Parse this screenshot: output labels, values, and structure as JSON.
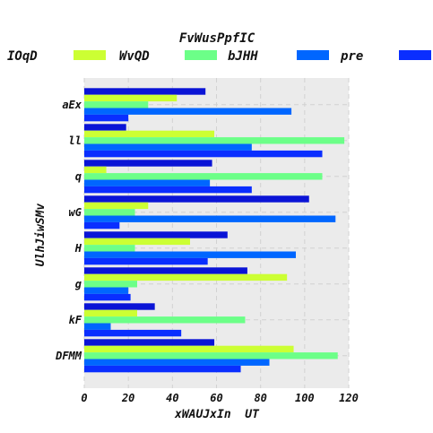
{
  "chart_data": {
    "type": "bar",
    "orientation": "horizontal",
    "title": "FvWusPpfIC",
    "xlabel": "xWAUJxIn  UT",
    "ylabel": "UlhJiwSMv",
    "xlim": [
      0,
      120
    ],
    "xticks": [
      0,
      20,
      40,
      60,
      80,
      100,
      120
    ],
    "grid": true,
    "legend_position": "top",
    "categories": [
      "aEx",
      "ll",
      "q",
      "wG",
      "H",
      "g",
      "kF",
      "DFMM"
    ],
    "series": [
      {
        "name": "IOqD",
        "color": "#0a14d6",
        "values": [
          55,
          19,
          58,
          102,
          65,
          74,
          32,
          59
        ]
      },
      {
        "name": "WvQD",
        "color": "#ccff33",
        "values": [
          42,
          59,
          10,
          29,
          48,
          92,
          24,
          95
        ]
      },
      {
        "name": "bJHH",
        "color": "#6cff88",
        "values": [
          29,
          118,
          108,
          23,
          23,
          24,
          73,
          115
        ]
      },
      {
        "name": "pre",
        "color": "#0066ff",
        "values": [
          94,
          76,
          57,
          114,
          96,
          20,
          12,
          84
        ]
      },
      {
        "name": "",
        "color": "#0a2eff",
        "values": [
          20,
          108,
          76,
          16,
          56,
          21,
          44,
          71
        ]
      }
    ]
  }
}
